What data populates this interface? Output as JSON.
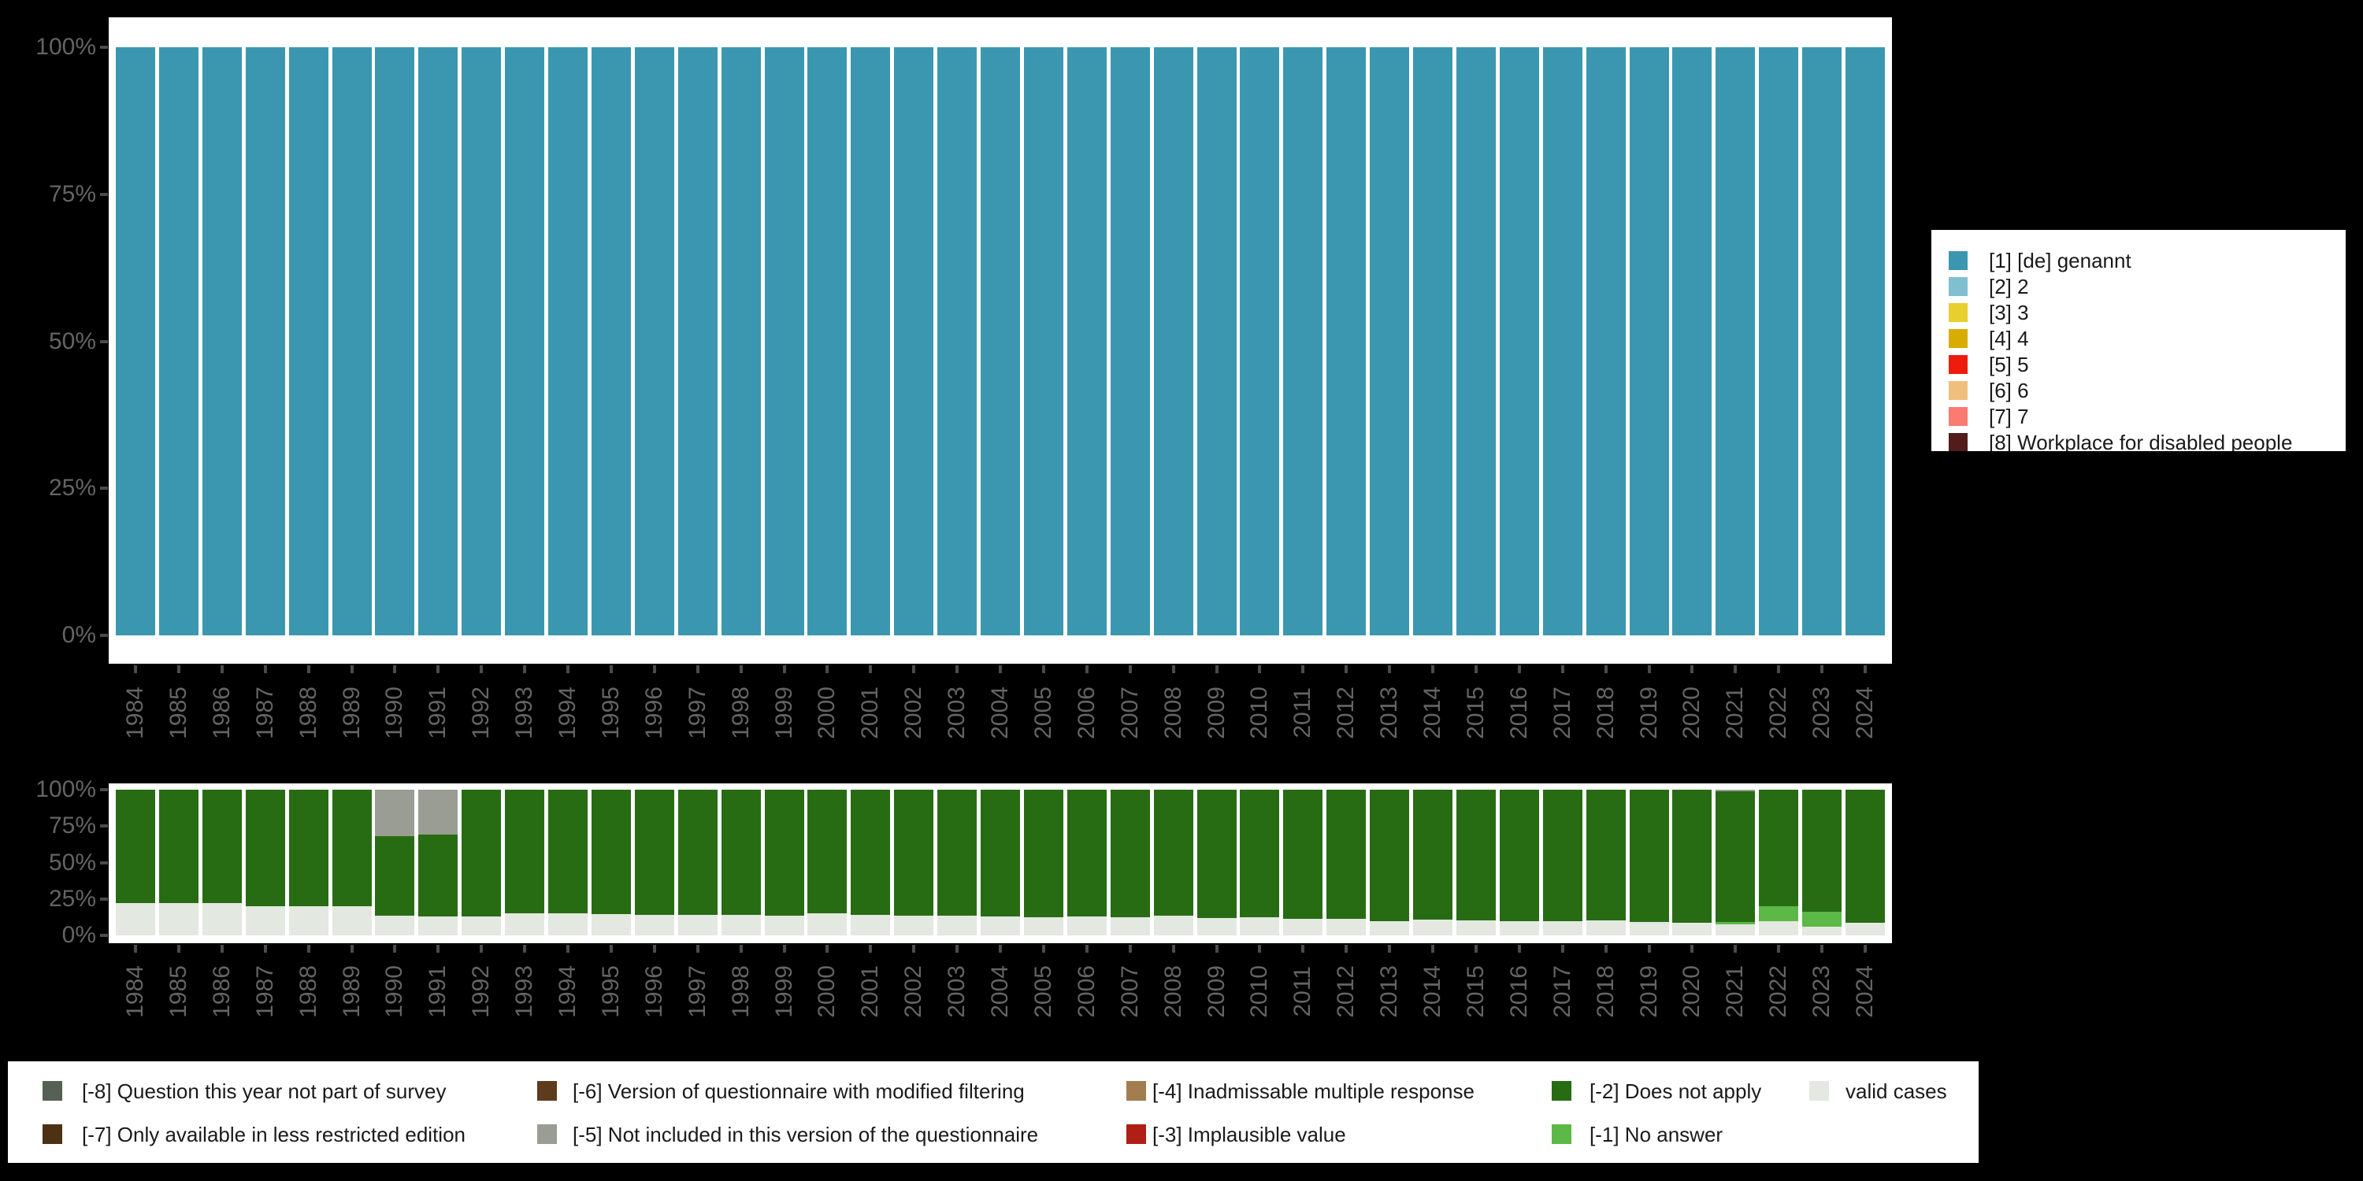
{
  "page_bg": "#000000",
  "plot_bg": "#ffffff",
  "axis": {
    "label_color": "#646464",
    "tick_color": "#4b4b4b",
    "y_tick_labels": [
      "100%",
      "75%",
      "50%",
      "25%",
      "0%"
    ],
    "y_tick_percents": [
      100,
      75,
      50,
      25,
      0
    ]
  },
  "top_legend": {
    "items": [
      {
        "label": "[1] [de] genannt",
        "color": "#3b97b0"
      },
      {
        "label": "[2] 2",
        "color": "#7fbfd0"
      },
      {
        "label": "[3] 3",
        "color": "#e8cf2e"
      },
      {
        "label": "[4] 4",
        "color": "#d9ad00"
      },
      {
        "label": "[5] 5",
        "color": "#ee1c0c"
      },
      {
        "label": "[6] 6",
        "color": "#f0bf7e"
      },
      {
        "label": "[7] 7",
        "color": "#f97b72"
      },
      {
        "label": "[8] Workplace for disabled people",
        "color": "#521c1b"
      }
    ]
  },
  "bottom_legend": {
    "items": [
      {
        "label": "[-8] Question this year not part of survey",
        "color": "#566054",
        "col": 1,
        "row": 1
      },
      {
        "label": "[-7] Only available in less restricted edition",
        "color": "#4c3115",
        "col": 1,
        "row": 2
      },
      {
        "label": "[-6] Version of questionnaire with modified filtering",
        "color": "#5e3b1d",
        "col": 2,
        "row": 1
      },
      {
        "label": "[-5] Not included in this version of the questionnaire",
        "color": "#9a9d94",
        "col": 2,
        "row": 2
      },
      {
        "label": "[-4] Inadmissable multiple response",
        "color": "#a37d50",
        "col": 3,
        "row": 1
      },
      {
        "label": "[-3] Implausible value",
        "color": "#b01f17",
        "col": 3,
        "row": 2
      },
      {
        "label": "[-2] Does not apply",
        "color": "#276c13",
        "col": 4,
        "row": 1
      },
      {
        "label": "[-1] No answer",
        "color": "#5cb847",
        "col": 4,
        "row": 2
      },
      {
        "label": "valid cases",
        "color": "#e3e8e0",
        "col": 5,
        "row": 1
      }
    ]
  },
  "chart_data": [
    {
      "type": "bar",
      "stacked": true,
      "stack_unit": "percent",
      "title": "",
      "xlabel": "",
      "ylabel": "",
      "ylim": [
        0,
        100
      ],
      "grid": false,
      "legend_position": "right",
      "categories": [
        "1984",
        "1985",
        "1986",
        "1987",
        "1988",
        "1989",
        "1990",
        "1991",
        "1992",
        "1993",
        "1994",
        "1995",
        "1996",
        "1997",
        "1998",
        "1999",
        "2000",
        "2001",
        "2002",
        "2003",
        "2004",
        "2005",
        "2006",
        "2007",
        "2008",
        "2009",
        "2010",
        "2011",
        "2012",
        "2013",
        "2014",
        "2015",
        "2016",
        "2017",
        "2018",
        "2019",
        "2020",
        "2021",
        "2022",
        "2023",
        "2024"
      ],
      "series": [
        {
          "name": "[1] [de] genannt",
          "color": "#3b97b0",
          "values": [
            100,
            100,
            100,
            100,
            100,
            100,
            100,
            100,
            100,
            100,
            100,
            100,
            100,
            100,
            100,
            100,
            100,
            100,
            100,
            100,
            100,
            100,
            100,
            100,
            100,
            100,
            100,
            100,
            100,
            100,
            100,
            100,
            100,
            100,
            100,
            100,
            100,
            100,
            100,
            100,
            100
          ]
        }
      ]
    },
    {
      "type": "bar",
      "stacked": true,
      "stack_unit": "percent",
      "title": "",
      "xlabel": "",
      "ylabel": "",
      "ylim": [
        0,
        100
      ],
      "grid": false,
      "legend_position": "bottom",
      "categories": [
        "1984",
        "1985",
        "1986",
        "1987",
        "1988",
        "1989",
        "1990",
        "1991",
        "1992",
        "1993",
        "1994",
        "1995",
        "1996",
        "1997",
        "1998",
        "1999",
        "2000",
        "2001",
        "2002",
        "2003",
        "2004",
        "2005",
        "2006",
        "2007",
        "2008",
        "2009",
        "2010",
        "2011",
        "2012",
        "2013",
        "2014",
        "2015",
        "2016",
        "2017",
        "2018",
        "2019",
        "2020",
        "2021",
        "2022",
        "2023",
        "2024"
      ],
      "series": [
        {
          "name": "[-5] Not included in this version of the questionnaire",
          "key": "not_included",
          "color": "#9a9d94",
          "values": [
            0,
            0,
            0,
            0,
            0,
            0,
            32,
            31,
            0,
            0,
            0,
            0,
            0,
            0,
            0,
            0,
            0,
            0,
            0,
            0,
            0,
            0,
            0,
            0,
            0,
            0,
            0,
            0,
            0,
            0,
            0,
            0,
            0,
            0,
            0,
            0,
            0,
            1,
            0,
            0,
            0
          ]
        },
        {
          "name": "[-2] Does not apply",
          "key": "does_not_apply",
          "color": "#276c13",
          "values": [
            78,
            78,
            78,
            80,
            80,
            80,
            54.5,
            56,
            87,
            85,
            85,
            85.5,
            86,
            86,
            86,
            86.5,
            85,
            86,
            86.5,
            86.5,
            87,
            87.5,
            87,
            87.5,
            86.5,
            88,
            87.5,
            88.5,
            88.5,
            90,
            89,
            89.5,
            90,
            90,
            89.5,
            91,
            91.5,
            90,
            80,
            84,
            91.5
          ]
        },
        {
          "name": "[-1] No answer",
          "key": "no_answer",
          "color": "#5cb847",
          "values": [
            0,
            0,
            0,
            0,
            0,
            0,
            0,
            0,
            0,
            0,
            0,
            0,
            0,
            0,
            0,
            0,
            0,
            0,
            0,
            0,
            0,
            0,
            0,
            0,
            0,
            0,
            0,
            0,
            0,
            0,
            0,
            0,
            0,
            0,
            0,
            0,
            0,
            1.5,
            10.5,
            10,
            0
          ]
        },
        {
          "name": "valid cases",
          "key": "valid",
          "color": "#e3e8e0",
          "values": [
            22,
            22,
            22,
            20,
            20,
            20,
            13.5,
            13,
            13,
            15,
            15,
            14.5,
            14,
            14,
            14,
            13.5,
            15,
            14,
            13.5,
            13.5,
            13,
            12.5,
            13,
            12.5,
            13.5,
            12,
            12.5,
            11.5,
            11.5,
            10,
            11,
            10.5,
            10,
            10,
            10.5,
            9,
            8.5,
            7.5,
            9.5,
            6,
            8.5
          ]
        }
      ]
    }
  ]
}
